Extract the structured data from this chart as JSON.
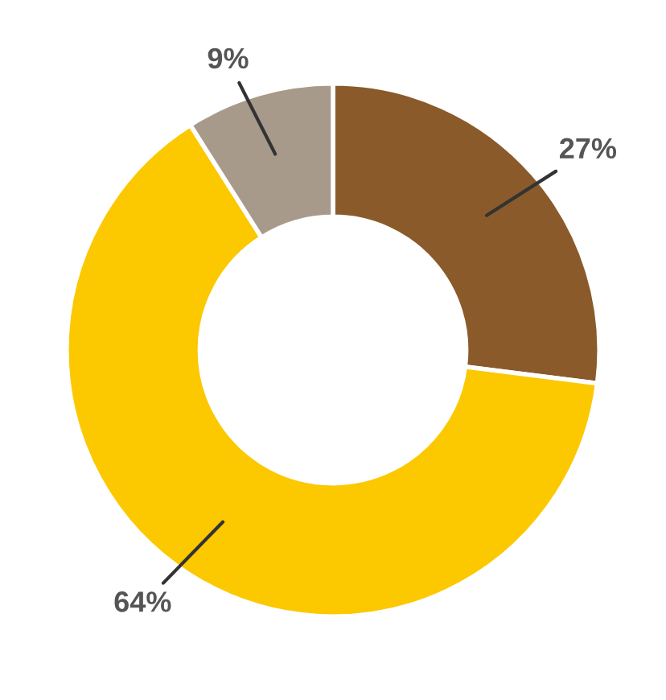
{
  "chart_data": {
    "type": "donut",
    "categories": [
      null,
      null,
      null
    ],
    "values": [
      27,
      64,
      9
    ],
    "colors": [
      "#8b5a2b",
      "#fcc800",
      "#a89a8a"
    ],
    "value_labels": [
      "27%",
      "64%",
      "9%"
    ]
  }
}
